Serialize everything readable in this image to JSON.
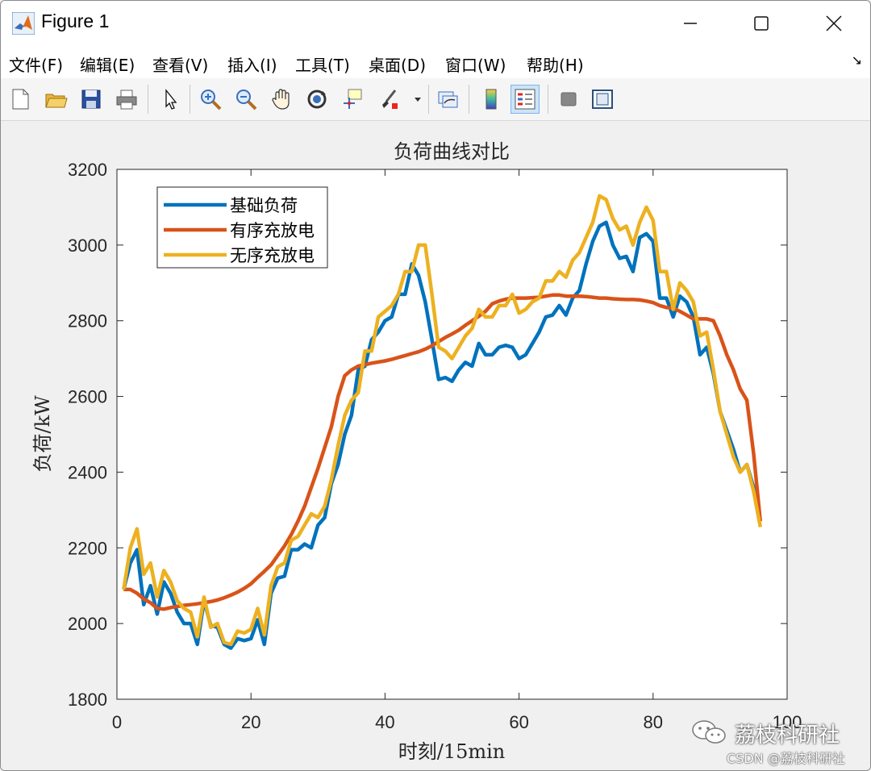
{
  "window": {
    "title": "Figure 1",
    "icons": [
      "matlab-icon",
      "minimize-icon",
      "maximize-icon",
      "close-icon"
    ]
  },
  "menu": {
    "items": [
      "文件(F)",
      "编辑(E)",
      "查看(V)",
      "插入(I)",
      "工具(T)",
      "桌面(D)",
      "窗口(W)",
      "帮助(H)"
    ],
    "dock_icon": "dock-arrow-icon"
  },
  "toolbar": {
    "tools": [
      "new-figure-icon",
      "open-file-icon",
      "save-icon",
      "print-icon",
      "select-arrow-icon",
      "zoom-in-icon",
      "zoom-out-icon",
      "pan-icon",
      "rotate-3d-icon",
      "data-cursor-icon",
      "brush-icon",
      "link-plot-icon",
      "colorbar-icon",
      "legend-icon",
      "hide-plot-tools-icon",
      "show-plot-tools-icon"
    ]
  },
  "chart_data": {
    "type": "line",
    "title": "负荷曲线对比",
    "xlabel": "时刻/15min",
    "ylabel": "负荷/kW",
    "xlim": [
      0,
      100
    ],
    "ylim": [
      1800,
      3200
    ],
    "xticks": [
      0,
      20,
      40,
      60,
      80,
      100
    ],
    "yticks": [
      1800,
      2000,
      2200,
      2400,
      2600,
      2800,
      3000,
      3200
    ],
    "grid": false,
    "legend": "top-left",
    "x": [
      1,
      2,
      3,
      4,
      5,
      6,
      7,
      8,
      9,
      10,
      11,
      12,
      13,
      14,
      15,
      16,
      17,
      18,
      19,
      20,
      21,
      22,
      23,
      24,
      25,
      26,
      27,
      28,
      29,
      30,
      31,
      32,
      33,
      34,
      35,
      36,
      37,
      38,
      39,
      40,
      41,
      42,
      43,
      44,
      45,
      46,
      47,
      48,
      49,
      50,
      51,
      52,
      53,
      54,
      55,
      56,
      57,
      58,
      59,
      60,
      61,
      62,
      63,
      64,
      65,
      66,
      67,
      68,
      69,
      70,
      71,
      72,
      73,
      74,
      75,
      76,
      77,
      78,
      79,
      80,
      81,
      82,
      83,
      84,
      85,
      86,
      87,
      88,
      89,
      90,
      91,
      92,
      93,
      94,
      95,
      96
    ],
    "series": [
      {
        "name": "基础负荷",
        "color": "#0072BD",
        "values": [
          2090,
          2160,
          2195,
          2050,
          2100,
          2025,
          2110,
          2080,
          2030,
          2000,
          2000,
          1945,
          2060,
          1995,
          1990,
          1945,
          1935,
          1960,
          1955,
          1960,
          2010,
          1945,
          2080,
          2120,
          2125,
          2195,
          2195,
          2210,
          2200,
          2260,
          2280,
          2370,
          2420,
          2500,
          2550,
          2670,
          2680,
          2750,
          2770,
          2800,
          2810,
          2870,
          2870,
          2950,
          2920,
          2850,
          2750,
          2645,
          2650,
          2640,
          2670,
          2690,
          2680,
          2740,
          2710,
          2710,
          2730,
          2735,
          2730,
          2700,
          2710,
          2740,
          2770,
          2810,
          2815,
          2840,
          2815,
          2860,
          2880,
          2950,
          3010,
          3050,
          3060,
          3000,
          2965,
          2970,
          2930,
          3020,
          3030,
          3010,
          2860,
          2860,
          2810,
          2865,
          2850,
          2810,
          2710,
          2730,
          2660,
          2560,
          2510,
          2460,
          2400,
          2420,
          2360,
          2270
        ]
      },
      {
        "name": "有序充放电",
        "color": "#D95319",
        "values": [
          2090,
          2090,
          2080,
          2065,
          2055,
          2040,
          2038,
          2042,
          2045,
          2048,
          2050,
          2052,
          2055,
          2058,
          2062,
          2068,
          2075,
          2083,
          2093,
          2105,
          2122,
          2138,
          2155,
          2180,
          2205,
          2235,
          2270,
          2310,
          2360,
          2410,
          2465,
          2520,
          2600,
          2655,
          2670,
          2680,
          2684,
          2688,
          2691,
          2694,
          2698,
          2703,
          2708,
          2713,
          2718,
          2725,
          2734,
          2745,
          2756,
          2765,
          2775,
          2788,
          2800,
          2812,
          2825,
          2845,
          2852,
          2857,
          2860,
          2860,
          2860,
          2861,
          2862,
          2865,
          2868,
          2868,
          2865,
          2865,
          2865,
          2864,
          2862,
          2860,
          2860,
          2858,
          2857,
          2856,
          2856,
          2855,
          2852,
          2848,
          2840,
          2835,
          2833,
          2825,
          2815,
          2805,
          2805,
          2805,
          2800,
          2760,
          2710,
          2670,
          2620,
          2590,
          2450,
          2270
        ]
      },
      {
        "name": "无序充放电",
        "color": "#EDB120",
        "values": [
          2090,
          2200,
          2250,
          2130,
          2160,
          2070,
          2140,
          2110,
          2060,
          2040,
          2030,
          1965,
          2070,
          1990,
          2000,
          1950,
          1945,
          1980,
          1975,
          1985,
          2040,
          1970,
          2100,
          2150,
          2160,
          2220,
          2230,
          2260,
          2290,
          2280,
          2310,
          2380,
          2470,
          2550,
          2590,
          2610,
          2720,
          2720,
          2810,
          2825,
          2840,
          2870,
          2930,
          2930,
          3000,
          3000,
          2870,
          2730,
          2720,
          2700,
          2730,
          2760,
          2780,
          2830,
          2810,
          2810,
          2840,
          2840,
          2870,
          2820,
          2830,
          2850,
          2860,
          2905,
          2905,
          2930,
          2915,
          2960,
          2980,
          3020,
          3060,
          3130,
          3120,
          3070,
          3040,
          3050,
          3000,
          3060,
          3100,
          3065,
          2930,
          2930,
          2830,
          2900,
          2880,
          2850,
          2760,
          2770,
          2670,
          2560,
          2500,
          2440,
          2400,
          2420,
          2350,
          2255
        ]
      }
    ]
  },
  "watermark": {
    "text": "荔枝科研社",
    "icon": "wechat-icon",
    "csdn": "CSDN @荔枝科研社"
  }
}
